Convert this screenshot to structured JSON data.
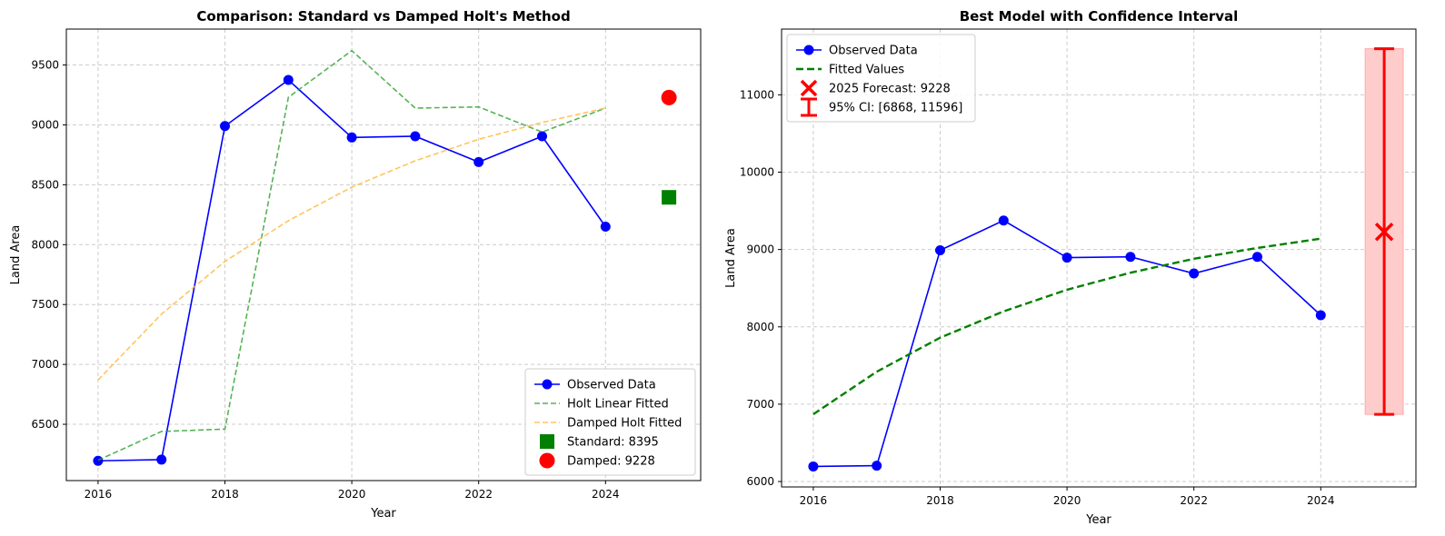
{
  "chart_data": [
    {
      "type": "line",
      "title": "Comparison: Standard vs Damped Holt's Method",
      "xlabel": "Year",
      "ylabel": "Land Area",
      "xlim": [
        2015.5,
        2025.5
      ],
      "ylim": [
        6030,
        9800
      ],
      "xticks": [
        2016,
        2018,
        2020,
        2022,
        2024
      ],
      "yticks": [
        6500,
        7000,
        7500,
        8000,
        8500,
        9000,
        9500
      ],
      "grid": true,
      "legend_position": "lower-right",
      "x": [
        2016,
        2017,
        2018,
        2019,
        2020,
        2021,
        2022,
        2023,
        2024
      ],
      "series": [
        {
          "name": "Observed Data",
          "style": "solid-marker",
          "color": "#0000ff",
          "values": [
            6195,
            6205,
            8990,
            9375,
            8895,
            8905,
            8690,
            8905,
            8150
          ]
        },
        {
          "name": "Holt Linear Fitted",
          "style": "dashed",
          "color": "#2ca02c",
          "values": [
            6200,
            6440,
            6460,
            9230,
            9620,
            9140,
            9150,
            8940,
            9140
          ]
        },
        {
          "name": "Damped Holt Fitted",
          "style": "dashed",
          "color": "#ffb733",
          "values": [
            6870,
            7420,
            7860,
            8200,
            8480,
            8700,
            8880,
            9020,
            9140
          ]
        }
      ],
      "points": [
        {
          "name": "Standard: 8395",
          "x": 2025,
          "y": 8395,
          "marker": "square",
          "color": "#008000"
        },
        {
          "name": "Damped: 9228",
          "x": 2025,
          "y": 9228,
          "marker": "circle",
          "color": "#ff0000"
        }
      ]
    },
    {
      "type": "line",
      "title": "Best Model with Confidence Interval",
      "xlabel": "Year",
      "ylabel": "Land Area",
      "xlim": [
        2015.5,
        2025.5
      ],
      "ylim": [
        5930,
        11850
      ],
      "xticks": [
        2016,
        2018,
        2020,
        2022,
        2024
      ],
      "yticks": [
        6000,
        7000,
        8000,
        9000,
        10000,
        11000
      ],
      "grid": true,
      "legend_position": "top-left",
      "x": [
        2016,
        2017,
        2018,
        2019,
        2020,
        2021,
        2022,
        2023,
        2024
      ],
      "series": [
        {
          "name": "Observed Data",
          "style": "solid-marker",
          "color": "#0000ff",
          "values": [
            6195,
            6205,
            8990,
            9375,
            8895,
            8905,
            8690,
            8905,
            8150
          ]
        },
        {
          "name": "Fitted Values",
          "style": "dashed-thick",
          "color": "#008000",
          "values": [
            6870,
            7420,
            7860,
            8200,
            8480,
            8700,
            8880,
            9020,
            9140
          ]
        }
      ],
      "forecast": {
        "name": "2025 Forecast: 9228",
        "x": 2025,
        "y": 9228,
        "color": "#ff0000"
      },
      "interval": {
        "name": "95% CI: [6868, 11596]",
        "x": 2025,
        "low": 6868,
        "high": 11596,
        "band_halfwidth_years": 0.3,
        "color": "#ff0000",
        "band_color": "#ffcccc"
      }
    }
  ]
}
